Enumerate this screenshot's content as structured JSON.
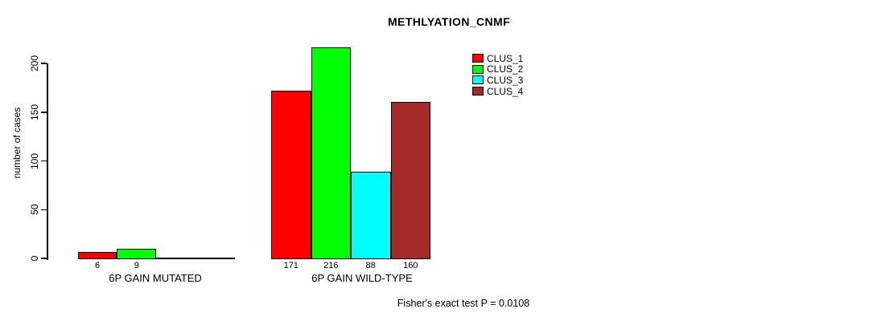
{
  "title": "METHLYATION_CNMF",
  "footer": "Fisher's exact test P = 0.0108",
  "y_axis": {
    "label": "number of cases",
    "tick_labels": [
      "0",
      "50",
      "100",
      "150",
      "200"
    ]
  },
  "x_axis": {
    "group_labels": [
      "6P GAIN MUTATED",
      "6P GAIN WILD-TYPE"
    ]
  },
  "legend": {
    "items": [
      {
        "label": "CLUS_1",
        "color": "#FF0000"
      },
      {
        "label": "CLUS_2",
        "color": "#00FF00"
      },
      {
        "label": "CLUS_3",
        "color": "#00FFFF"
      },
      {
        "label": "CLUS_4",
        "color": "#A52A2A"
      }
    ]
  },
  "chart_data": {
    "type": "bar",
    "title": "METHLYATION_CNMF",
    "xlabel": "",
    "ylabel": "number of cases",
    "ylim": [
      0,
      216
    ],
    "yticks": [
      0,
      50,
      100,
      150,
      200
    ],
    "grid": false,
    "legend_position": "top-right",
    "categories": [
      "6P GAIN MUTATED",
      "6P GAIN WILD-TYPE"
    ],
    "series": [
      {
        "name": "CLUS_1",
        "color": "#FF0000",
        "values": [
          6,
          171
        ]
      },
      {
        "name": "CLUS_2",
        "color": "#00FF00",
        "values": [
          9,
          216
        ]
      },
      {
        "name": "CLUS_3",
        "color": "#00FFFF",
        "values": [
          0,
          88
        ]
      },
      {
        "name": "CLUS_4",
        "color": "#A52A2A",
        "values": [
          0,
          160
        ]
      }
    ],
    "bar_value_labels": [
      [
        "6",
        "9",
        "",
        ""
      ],
      [
        "171",
        "216",
        "88",
        "160"
      ]
    ],
    "annotation": "Fisher's exact test P = 0.0108",
    "bar_border_color": "#000000"
  }
}
